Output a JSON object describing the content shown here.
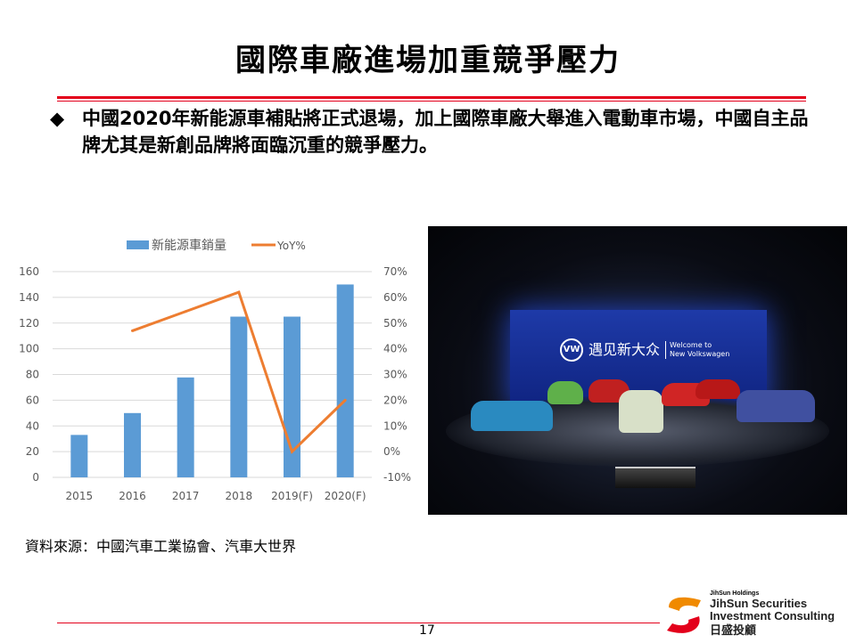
{
  "title": "國際車廠進場加重競爭壓力",
  "bullet": {
    "icon": "diamond-bullet-icon",
    "symbol": "◆",
    "text": "中國2020年新能源車補貼將正式退場，加上國際車廠大舉進入電動車市場，中國自主品牌尤其是新創品牌將面臨沉重的競爭壓力。"
  },
  "chart_data": {
    "type": "bar+line",
    "categories": [
      "2015",
      "2016",
      "2017",
      "2018",
      "2019(F)",
      "2020(F)"
    ],
    "series": [
      {
        "name": "新能源車銷量",
        "type": "bar",
        "axis": "left",
        "color": "#5b9bd5",
        "values": [
          33,
          50,
          77.7,
          125,
          125,
          150
        ]
      },
      {
        "name": "YoY%",
        "type": "line",
        "axis": "right",
        "color": "#ed7d31",
        "values": [
          null,
          47,
          54.5,
          62,
          0,
          20
        ]
      }
    ],
    "y_left": {
      "ylim": [
        0,
        160
      ],
      "ticks": [
        "0",
        "20",
        "40",
        "60",
        "80",
        "100",
        "120",
        "140",
        "160"
      ]
    },
    "y_right": {
      "ylim": [
        -10,
        70
      ],
      "ticks": [
        "-10%",
        "0%",
        "10%",
        "20%",
        "30%",
        "40%",
        "50%",
        "60%",
        "70%"
      ]
    },
    "grid": true,
    "legend": "top"
  },
  "source": "資料來源：中國汽車工業協會、汽車大世界",
  "photo": {
    "logo_text": "VW",
    "headline": "遇见新大众",
    "subline1": "Welcome to",
    "subline2": "New Volkswagen"
  },
  "footer": {
    "page": "17",
    "logo": {
      "holdings": "JihSun Holdings",
      "line1": "JihSun Securities",
      "line2": "Investment Consulting",
      "chinese": "日盛投顧",
      "colors": [
        "#f08a00",
        "#e3001b"
      ]
    }
  }
}
